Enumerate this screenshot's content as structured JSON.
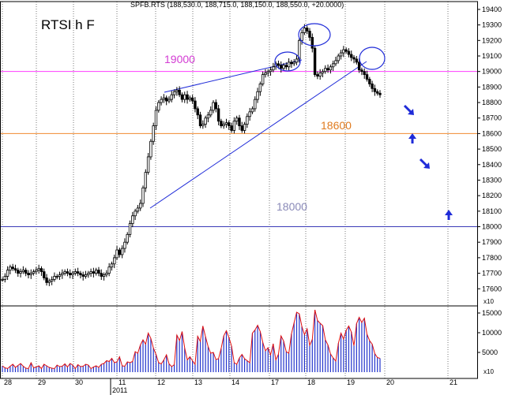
{
  "header": "SPFB.RTS (188,530.0, 188,715.0, 188,150.0, 188,550.0, +20.0000)",
  "title": "RTSI h F",
  "levels": [
    {
      "label": "19000",
      "value": 19000,
      "color": "#ff3cff"
    },
    {
      "label": "18600",
      "value": 18600,
      "color": "#f08a30"
    },
    {
      "label": "18000",
      "value": 18000,
      "color": "#3b3bb8"
    }
  ],
  "year_label": "2011",
  "chart_data": {
    "type": "candlestick",
    "title": "RTSI h F",
    "x_tick_labels": [
      "28",
      "29",
      "30",
      "11",
      "12",
      "13",
      "14",
      "17",
      "18",
      "19",
      "20",
      "21"
    ],
    "price_axis": {
      "ylim": [
        17520,
        19420
      ],
      "ticks": [
        17600,
        17700,
        17800,
        17900,
        18000,
        18100,
        18200,
        18300,
        18400,
        18500,
        18600,
        18700,
        18800,
        18900,
        19000,
        19100,
        19200,
        19300,
        19400
      ],
      "overflow_label": "x10"
    },
    "volume_axis": {
      "ylim": [
        0,
        16000
      ],
      "ticks": [
        5000,
        10000,
        15000
      ],
      "overflow_label": "x10"
    },
    "price_close": [
      17660,
      17680,
      17720,
      17740,
      17730,
      17720,
      17700,
      17710,
      17720,
      17700,
      17690,
      17700,
      17710,
      17720,
      17730,
      17710,
      17670,
      17640,
      17650,
      17660,
      17680,
      17680,
      17690,
      17700,
      17710,
      17700,
      17690,
      17700,
      17710,
      17700,
      17690,
      17680,
      17690,
      17700,
      17710,
      17700,
      17720,
      17700,
      17680,
      17690,
      17700,
      17740,
      17760,
      17800,
      17850,
      17820,
      17860,
      17900,
      17950,
      18020,
      18070,
      18100,
      18120,
      18150,
      18250,
      18350,
      18450,
      18550,
      18650,
      18750,
      18800,
      18820,
      18830,
      18810,
      18820,
      18850,
      18870,
      18880,
      18850,
      18820,
      18850,
      18820,
      18830,
      18810,
      18760,
      18720,
      18650,
      18660,
      18700,
      18720,
      18750,
      18800,
      18760,
      18680,
      18650,
      18660,
      18670,
      18650,
      18620,
      18680,
      18700,
      18650,
      18620,
      18660,
      18710,
      18740,
      18760,
      18820,
      18870,
      18920,
      18980,
      18990,
      19000,
      19010,
      19030,
      19050,
      19040,
      19020,
      19040,
      19030,
      19060,
      19050,
      19060,
      19080,
      19200,
      19250,
      19280,
      19260,
      19220,
      19150,
      18980,
      18970,
      18990,
      19000,
      19020,
      19010,
      19030,
      19050,
      19070,
      19100,
      19120,
      19140,
      19130,
      19110,
      19090,
      19080,
      19060,
      19010,
      19000,
      18980,
      18950,
      18920,
      18890,
      18870,
      18860,
      18850
    ],
    "volume": [
      1600,
      1100,
      900,
      1500,
      2000,
      1200,
      1700,
      2200,
      1500,
      1000,
      900,
      2400,
      1100,
      1300,
      1600,
      900,
      2000,
      1600,
      1200,
      1000,
      900,
      1800,
      1400,
      1500,
      2100,
      1300,
      2200,
      1800,
      900,
      1900,
      1400,
      1500,
      2000,
      1800,
      900,
      1300,
      1600,
      1200,
      2000,
      2200,
      2900,
      2700,
      3500,
      2400,
      2600,
      3900,
      1600,
      1500,
      2600,
      2400,
      2700,
      5200,
      4800,
      6900,
      8200,
      7100,
      9900,
      8600,
      6100,
      4500,
      2400,
      2100,
      3100,
      4400,
      2100,
      1400,
      1900,
      9400,
      8000,
      10300,
      6100,
      3100,
      3900,
      2900,
      2000,
      9100,
      7800,
      11700,
      9000,
      6500,
      4800,
      5000,
      3200,
      3400,
      6000,
      9200,
      10500,
      8800,
      6600,
      2400,
      2000,
      3600,
      4500,
      3400,
      2900,
      2400,
      9900,
      10700,
      11900,
      10300,
      7500,
      5400,
      6200,
      4400,
      7200,
      3100,
      4500,
      9200,
      7900,
      5200,
      4800,
      9700,
      12500,
      15200,
      14800,
      11600,
      9500,
      11000,
      6800,
      8300,
      15800,
      13100,
      12400,
      11800,
      8200,
      6900,
      4600,
      3600,
      2800,
      7300,
      9900,
      8400,
      10600,
      11700,
      10200,
      6700,
      12300,
      13900,
      12600,
      13700,
      9600,
      8000,
      7100,
      4700,
      3700,
      3500
    ]
  },
  "icons": [
    "arrow-down-right-icon",
    "arrow-up-icon",
    "arrow-down-right-icon",
    "arrow-up-icon"
  ]
}
